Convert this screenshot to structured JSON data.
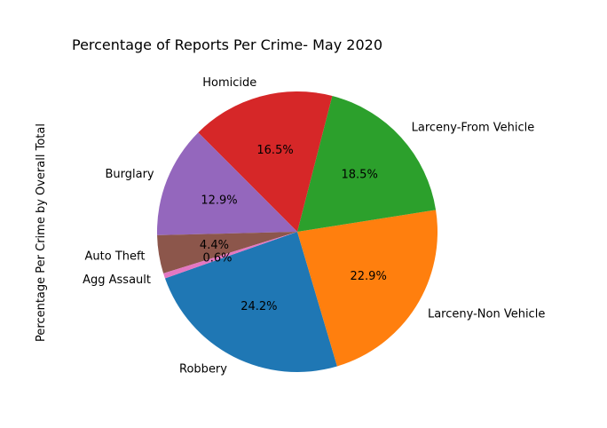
{
  "chart_data": {
    "type": "pie",
    "title": "Percentage of Reports Per Crime- May 2020",
    "ylabel": "Percentage Per Crime by Overall Total",
    "slices": [
      {
        "label": "Robbery",
        "value": 24.2,
        "display": "24.2%",
        "color": "#1f77b4"
      },
      {
        "label": "Larceny-Non Vehicle",
        "value": 22.9,
        "display": "22.9%",
        "color": "#ff7f0e"
      },
      {
        "label": "Larceny-From Vehicle",
        "value": 18.5,
        "display": "18.5%",
        "color": "#2ca02c"
      },
      {
        "label": "Homicide",
        "value": 16.5,
        "display": "16.5%",
        "color": "#d62728"
      },
      {
        "label": "Burglary",
        "value": 12.9,
        "display": "12.9%",
        "color": "#9467bd"
      },
      {
        "label": "Auto Theft",
        "value": 4.4,
        "display": "4.4%",
        "color": "#8c564b"
      },
      {
        "label": "Agg Assault",
        "value": 0.6,
        "display": "0.6%",
        "color": "#e377c2"
      }
    ]
  }
}
